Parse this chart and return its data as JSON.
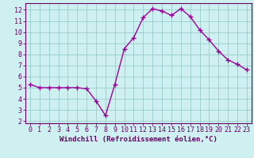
{
  "x": [
    0,
    1,
    2,
    3,
    4,
    5,
    6,
    7,
    8,
    9,
    10,
    11,
    12,
    13,
    14,
    15,
    16,
    17,
    18,
    19,
    20,
    21,
    22,
    23
  ],
  "y": [
    5.3,
    5.0,
    5.0,
    5.0,
    5.0,
    5.0,
    4.9,
    3.8,
    2.5,
    5.3,
    8.5,
    9.5,
    11.3,
    12.1,
    11.9,
    11.5,
    12.1,
    11.4,
    10.2,
    9.3,
    8.3,
    7.5,
    7.1,
    6.6
  ],
  "line_color": "#990099",
  "marker": "+",
  "markersize": 4,
  "markeredgewidth": 1.0,
  "linewidth": 1.0,
  "bg_color": "#cff0f0",
  "grid_color": "#99cccc",
  "axis_label_color": "#660066",
  "tick_color": "#660066",
  "xlabel": "Windchill (Refroidissement éolien,°C)",
  "xlim": [
    -0.5,
    23.5
  ],
  "ylim": [
    1.8,
    12.6
  ],
  "yticks": [
    2,
    3,
    4,
    5,
    6,
    7,
    8,
    9,
    10,
    11,
    12
  ],
  "xticks": [
    0,
    1,
    2,
    3,
    4,
    5,
    6,
    7,
    8,
    9,
    10,
    11,
    12,
    13,
    14,
    15,
    16,
    17,
    18,
    19,
    20,
    21,
    22,
    23
  ],
  "xlabel_fontsize": 6.5,
  "tick_fontsize": 6.0,
  "border_color": "#660066"
}
